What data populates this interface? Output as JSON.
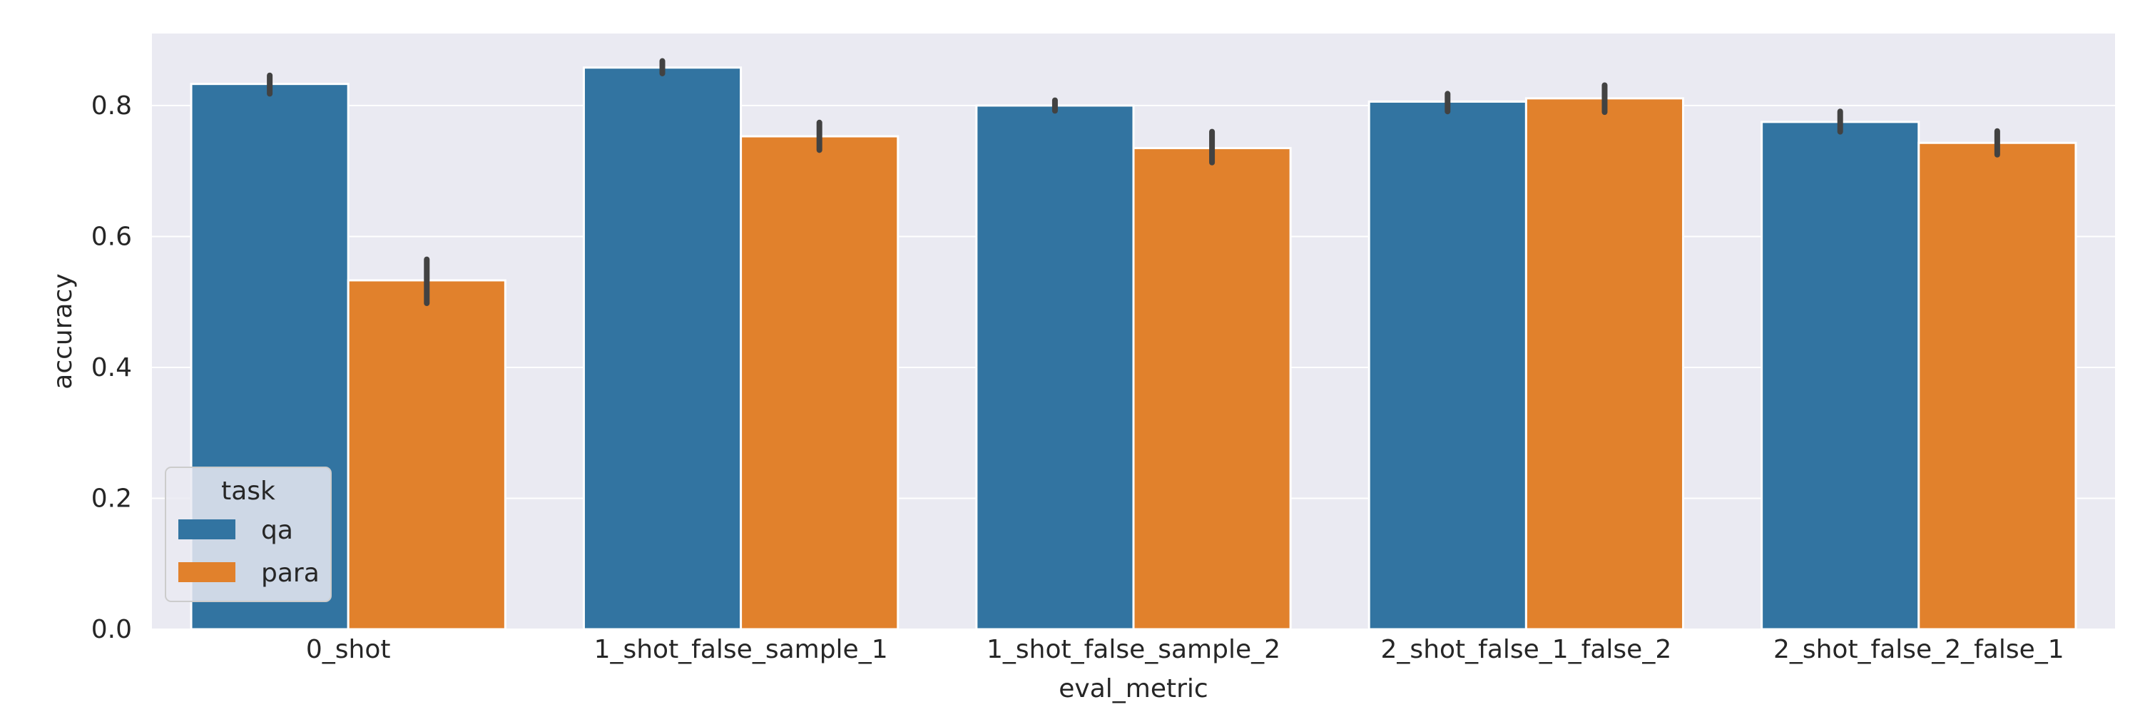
{
  "chart_data": {
    "type": "bar",
    "title": "",
    "xlabel": "eval_metric",
    "ylabel": "accuracy",
    "ylim": [
      0,
      0.91
    ],
    "yticks": [
      0.0,
      0.2,
      0.4,
      0.6,
      0.8
    ],
    "ytick_labels": [
      "0.0",
      "0.2",
      "0.4",
      "0.6",
      "0.8"
    ],
    "grid": true,
    "categories": [
      "0_shot",
      "1_shot_false_sample_1",
      "1_shot_false_sample_2",
      "2_shot_false_1_false_2",
      "2_shot_false_2_false_1"
    ],
    "series": [
      {
        "name": "qa",
        "color": "#3274a1",
        "values": [
          0.833,
          0.858,
          0.8,
          0.806,
          0.775
        ],
        "err_low": [
          0.818,
          0.849,
          0.792,
          0.791,
          0.76
        ],
        "err_high": [
          0.846,
          0.868,
          0.808,
          0.818,
          0.791
        ]
      },
      {
        "name": "para",
        "color": "#e1812c",
        "values": [
          0.533,
          0.753,
          0.735,
          0.811,
          0.743
        ],
        "err_low": [
          0.498,
          0.732,
          0.713,
          0.79,
          0.725
        ],
        "err_high": [
          0.565,
          0.774,
          0.76,
          0.831,
          0.761
        ]
      }
    ],
    "legend": {
      "title": "task",
      "placement": "lower-left",
      "entries": [
        "qa",
        "para"
      ]
    },
    "colors": {
      "plot_background": "#eaeaf2",
      "grid": "#ffffff",
      "error_bar": "#424242"
    }
  }
}
